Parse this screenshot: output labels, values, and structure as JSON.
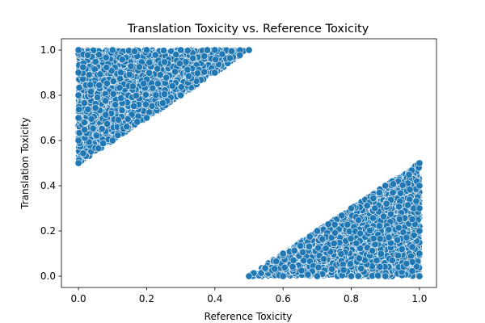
{
  "chart_data": {
    "type": "scatter",
    "title": "Translation Toxicity vs. Reference Toxicity",
    "xlabel": "Reference Toxicity",
    "ylabel": "Translation Toxicity",
    "xlim": [
      -0.05,
      1.05
    ],
    "ylim": [
      -0.05,
      1.05
    ],
    "xticks": [
      "0.0",
      "0.2",
      "0.4",
      "0.6",
      "0.8",
      "1.0"
    ],
    "yticks": [
      "0.0",
      "0.2",
      "0.4",
      "0.6",
      "0.8",
      "1.0"
    ],
    "grid": false,
    "marker_color": "#1f77b4",
    "marker_edge_color": "#ffffff",
    "regions": [
      {
        "description": "upper-left cluster",
        "vertices": [
          [
            0.0,
            0.5
          ],
          [
            0.0,
            1.0
          ],
          [
            0.5,
            1.0
          ]
        ]
      },
      {
        "description": "lower-right cluster",
        "vertices": [
          [
            0.5,
            0.0
          ],
          [
            1.0,
            0.0
          ],
          [
            1.0,
            0.5
          ]
        ]
      }
    ],
    "boundary_points": [
      [
        0.0,
        0.5
      ],
      [
        0.0,
        0.6
      ],
      [
        0.0,
        0.7
      ],
      [
        0.0,
        0.8
      ],
      [
        0.0,
        0.9
      ],
      [
        0.0,
        1.0
      ],
      [
        0.1,
        1.0
      ],
      [
        0.2,
        1.0
      ],
      [
        0.3,
        1.0
      ],
      [
        0.4,
        1.0
      ],
      [
        0.5,
        1.0
      ],
      [
        0.1,
        0.6
      ],
      [
        0.2,
        0.7
      ],
      [
        0.3,
        0.8
      ],
      [
        0.4,
        0.9
      ],
      [
        0.5,
        0.0
      ],
      [
        0.6,
        0.0
      ],
      [
        0.7,
        0.0
      ],
      [
        0.8,
        0.0
      ],
      [
        0.9,
        0.0
      ],
      [
        1.0,
        0.0
      ],
      [
        1.0,
        0.1
      ],
      [
        1.0,
        0.2
      ],
      [
        1.0,
        0.3
      ],
      [
        1.0,
        0.4
      ],
      [
        1.0,
        0.5
      ],
      [
        0.6,
        0.1
      ],
      [
        0.7,
        0.2
      ],
      [
        0.8,
        0.3
      ],
      [
        0.9,
        0.4
      ]
    ]
  }
}
